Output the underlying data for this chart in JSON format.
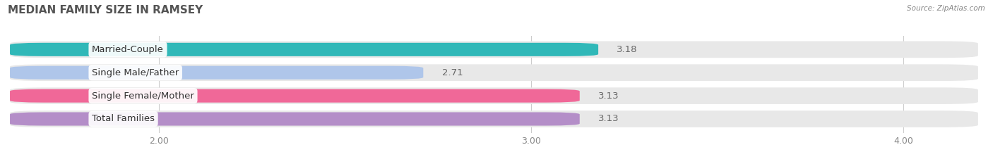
{
  "title": "MEDIAN FAMILY SIZE IN RAMSEY",
  "source": "Source: ZipAtlas.com",
  "categories": [
    "Married-Couple",
    "Single Male/Father",
    "Single Female/Mother",
    "Total Families"
  ],
  "values": [
    3.18,
    2.71,
    3.13,
    3.13
  ],
  "bar_colors": [
    "#30b8b8",
    "#afc6ea",
    "#f06898",
    "#b48ec8"
  ],
  "bar_bg_color": "#e8e8e8",
  "xlim_min": 1.6,
  "xlim_max": 4.2,
  "xstart": 1.6,
  "xticks": [
    2.0,
    3.0,
    4.0
  ],
  "xtick_labels": [
    "2.00",
    "3.00",
    "4.00"
  ],
  "background_color": "#ffffff",
  "title_fontsize": 11,
  "label_fontsize": 9.5,
  "value_fontsize": 9.5,
  "tick_fontsize": 9
}
